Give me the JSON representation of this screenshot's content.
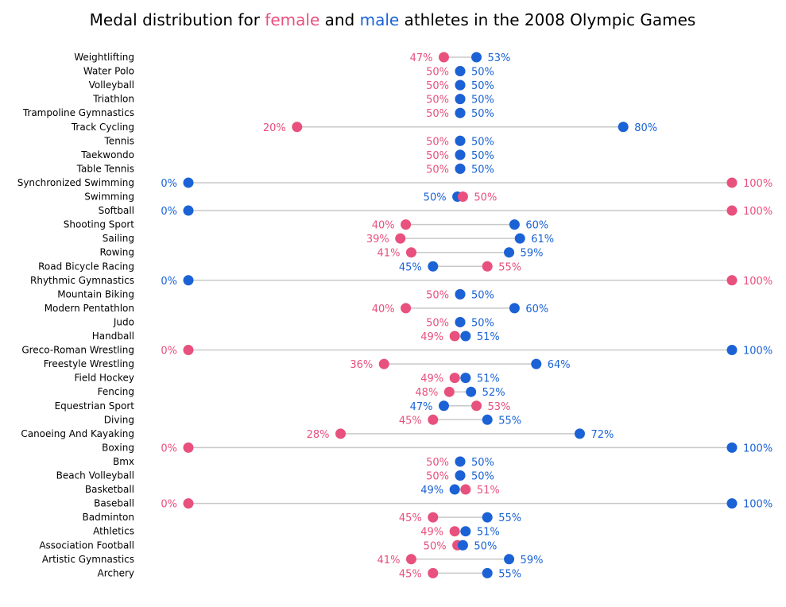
{
  "chart_data": {
    "type": "dumbbell",
    "title_parts": [
      "Medal distribution for ",
      "female",
      " and ",
      "male",
      " athletes in the 2008 Olympic Games"
    ],
    "colors": {
      "female": "#e8507d",
      "male": "#1a62d6",
      "connector": "#c8c8c8",
      "text": "#000000"
    },
    "xlim": [
      0,
      100
    ],
    "grid": false,
    "series_names": [
      "female",
      "male"
    ],
    "categories": [
      "Weightlifting",
      "Water Polo",
      "Volleyball",
      "Triathlon",
      "Trampoline Gymnastics",
      "Track Cycling",
      "Tennis",
      "Taekwondo",
      "Table Tennis",
      "Synchronized Swimming",
      "Swimming",
      "Softball",
      "Shooting Sport",
      "Sailing",
      "Rowing",
      "Road Bicycle Racing",
      "Rhythmic Gymnastics",
      "Mountain Biking",
      "Modern Pentathlon",
      "Judo",
      "Handball",
      "Greco-Roman Wrestling",
      "Freestyle Wrestling",
      "Field Hockey",
      "Fencing",
      "Equestrian Sport",
      "Diving",
      "Canoeing And Kayaking",
      "Boxing",
      "Bmx",
      "Beach Volleyball",
      "Basketball",
      "Baseball",
      "Badminton",
      "Athletics",
      "Association Football",
      "Artistic Gymnastics",
      "Archery"
    ],
    "female": [
      47,
      50,
      50,
      50,
      50,
      20,
      50,
      50,
      50,
      100,
      50.5,
      100,
      40,
      39,
      41,
      55,
      100,
      50,
      40,
      50,
      49,
      0,
      36,
      49,
      48,
      53,
      45,
      28,
      0,
      50,
      50,
      51,
      0,
      45,
      49,
      49.5,
      41,
      45
    ],
    "male": [
      53,
      50,
      50,
      50,
      50,
      80,
      50,
      50,
      50,
      0,
      49.5,
      0,
      60,
      61,
      59,
      45,
      0,
      50,
      60,
      50,
      51,
      100,
      64,
      51,
      52,
      47,
      55,
      72,
      100,
      50,
      50,
      49,
      100,
      55,
      51,
      50.5,
      59,
      55
    ],
    "female_labels": [
      "47%",
      "50%",
      "50%",
      "50%",
      "50%",
      "20%",
      "50%",
      "50%",
      "50%",
      "100%",
      "50%",
      "100%",
      "40%",
      "39%",
      "41%",
      "55%",
      "100%",
      "50%",
      "40%",
      "50%",
      "49%",
      "0%",
      "36%",
      "49%",
      "48%",
      "53%",
      "45%",
      "28%",
      "0%",
      "50%",
      "50%",
      "51%",
      "0%",
      "45%",
      "49%",
      "50%",
      "41%",
      "45%"
    ],
    "male_labels": [
      "53%",
      "50%",
      "50%",
      "50%",
      "50%",
      "80%",
      "50%",
      "50%",
      "50%",
      "0%",
      "50%",
      "0%",
      "60%",
      "61%",
      "59%",
      "45%",
      "0%",
      "50%",
      "60%",
      "50%",
      "51%",
      "100%",
      "64%",
      "51%",
      "52%",
      "47%",
      "55%",
      "72%",
      "100%",
      "50%",
      "50%",
      "49%",
      "100%",
      "55%",
      "51%",
      "50%",
      "59%",
      "55%"
    ]
  }
}
